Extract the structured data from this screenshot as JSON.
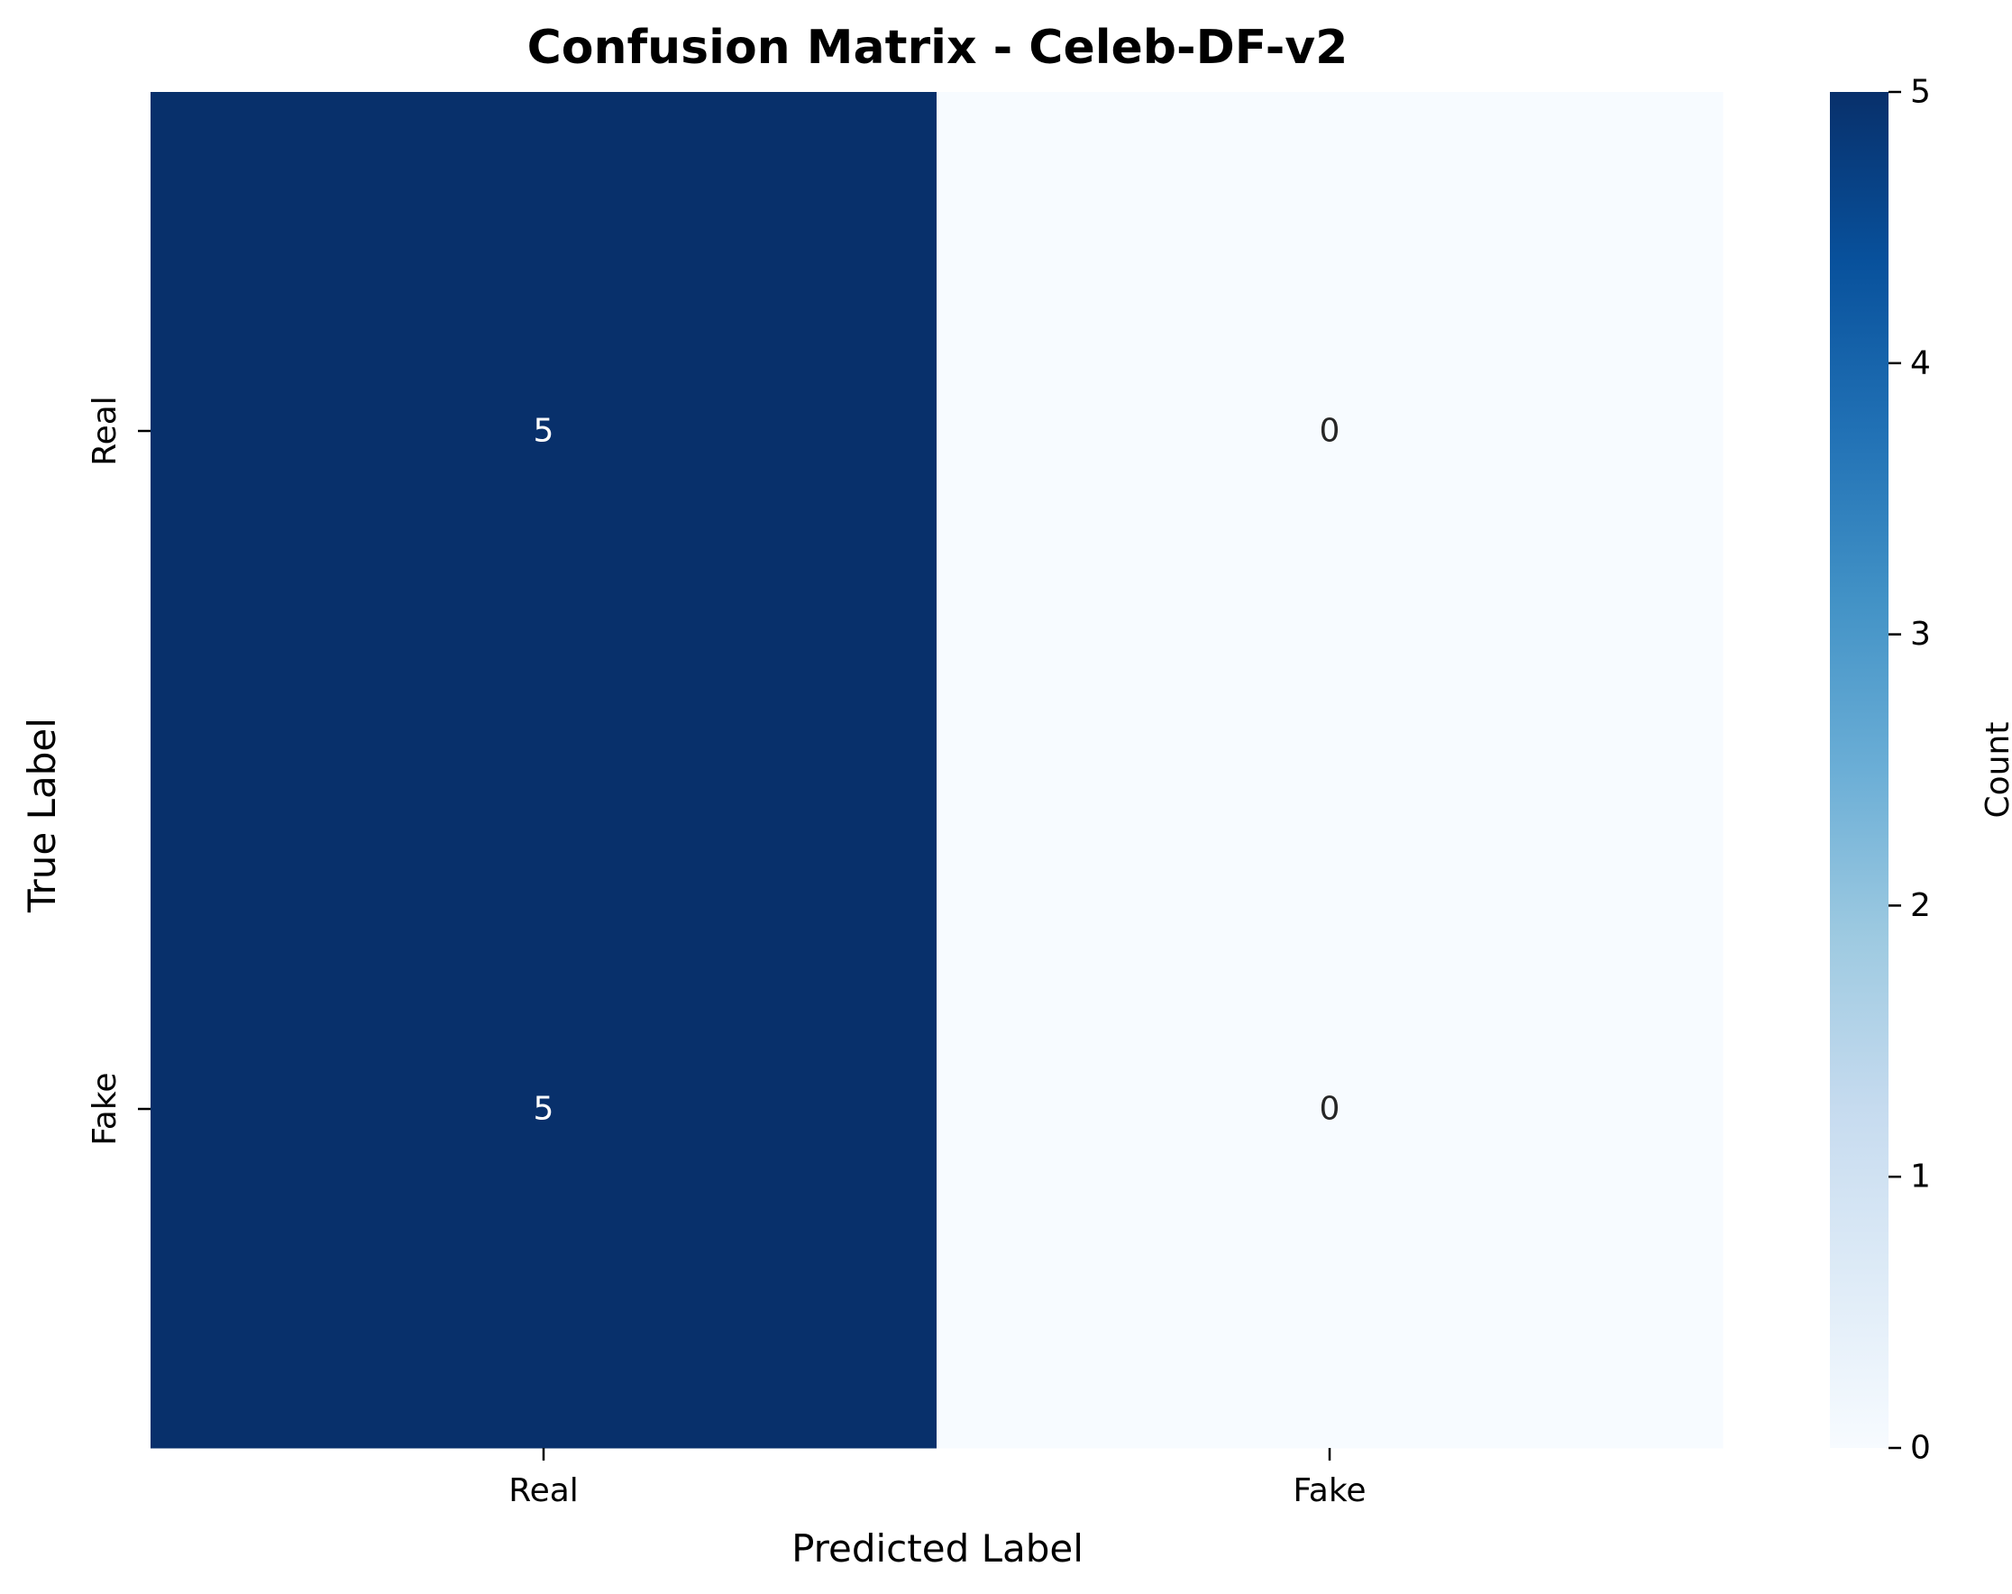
{
  "chart_data": {
    "type": "heatmap",
    "title": "Confusion Matrix - Celeb-DF-v2",
    "xlabel": "Predicted Label",
    "ylabel": "True Label",
    "x_categories": [
      "Real",
      "Fake"
    ],
    "y_categories": [
      "Real",
      "Fake"
    ],
    "values": [
      [
        5,
        0
      ],
      [
        5,
        0
      ]
    ],
    "annotations": [
      [
        "5",
        "0"
      ],
      [
        "5",
        "0"
      ]
    ],
    "colorbar": {
      "label": "Count",
      "range": [
        0,
        5
      ],
      "ticks": [
        0,
        1,
        2,
        3,
        4,
        5
      ],
      "tick_labels": [
        "0",
        "1",
        "2",
        "3",
        "4",
        "5"
      ],
      "colormap": "Blues"
    },
    "colors": {
      "max": "#08306b",
      "min": "#f7fbff",
      "annot_on_dark": "#ffffff",
      "annot_on_light": "#262626"
    },
    "grid": false,
    "legend": "none"
  }
}
